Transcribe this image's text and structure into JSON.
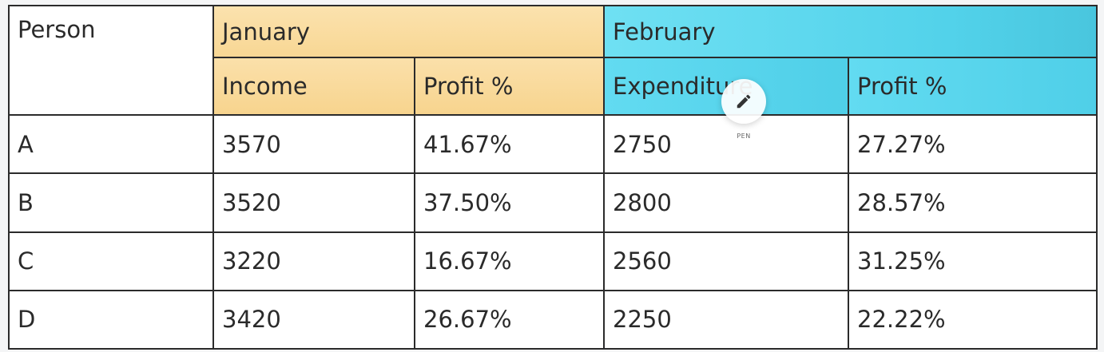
{
  "table": {
    "header": {
      "person": "Person",
      "january": "January",
      "february": "February",
      "income": "Income",
      "jan_profit": "Profit %",
      "expenditure": "Expenditure",
      "feb_profit": "Profit %"
    },
    "rows": [
      {
        "person": "A",
        "income": "3570",
        "jan_profit": "41.67%",
        "expenditure": "2750",
        "feb_profit": "27.27%"
      },
      {
        "person": "B",
        "income": "3520",
        "jan_profit": "37.50%",
        "expenditure": "2800",
        "feb_profit": "28.57%"
      },
      {
        "person": "C",
        "income": "3220",
        "jan_profit": "16.67%",
        "expenditure": "2560",
        "feb_profit": "31.25%"
      },
      {
        "person": "D",
        "income": "3420",
        "jan_profit": "26.67%",
        "expenditure": "2250",
        "feb_profit": "22.22%"
      }
    ]
  },
  "pen_tool": {
    "label": "PEN",
    "icon": "pencil-icon"
  },
  "colors": {
    "january_header": "#f8d794",
    "february_header": "#52d2ea",
    "border": "#2b2b2b"
  }
}
